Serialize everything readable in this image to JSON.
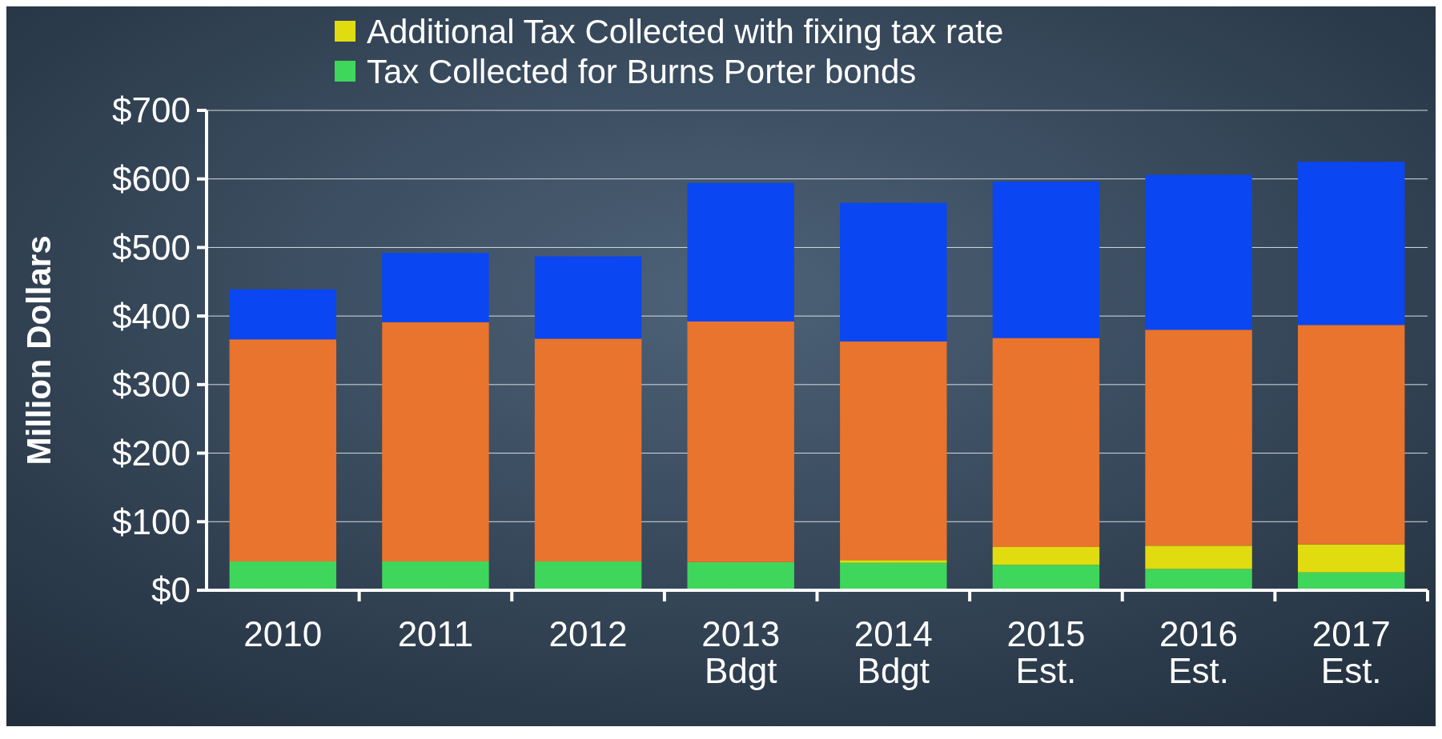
{
  "chart_data": {
    "type": "bar",
    "stacked": true,
    "ylabel": "Million Dollars",
    "categories": [
      "2010",
      "2011",
      "2012",
      "2013 Bdgt",
      "2014 Bdgt",
      "2015 Est.",
      "2016 Est.",
      "2017 Est."
    ],
    "series": [
      {
        "name": "Tax Collected for Burns Porter bonds",
        "color": "#3fd65c",
        "values": [
          42,
          42,
          42,
          41,
          40,
          37,
          31,
          26
        ]
      },
      {
        "name": "Additional Tax Collected with fixing tax rate",
        "color": "#e0dc10",
        "values": [
          0,
          0,
          0,
          0,
          4,
          26,
          34,
          41
        ]
      },
      {
        "color": "#e8742e",
        "values": [
          324,
          349,
          325,
          351,
          319,
          305,
          315,
          320
        ]
      },
      {
        "color": "#0a46f2",
        "values": [
          73,
          101,
          120,
          202,
          202,
          228,
          226,
          238
        ]
      }
    ],
    "ylim": [
      0,
      700
    ],
    "yticks": [
      {
        "value": 0,
        "label": "$0"
      },
      {
        "value": 100,
        "label": "$100"
      },
      {
        "value": 200,
        "label": "$200"
      },
      {
        "value": 300,
        "label": "$300"
      },
      {
        "value": 400,
        "label": "$400"
      },
      {
        "value": 500,
        "label": "$500"
      },
      {
        "value": 600,
        "label": "$600"
      },
      {
        "value": 700,
        "label": "$700"
      }
    ],
    "grid": "y",
    "legend": "top left"
  }
}
